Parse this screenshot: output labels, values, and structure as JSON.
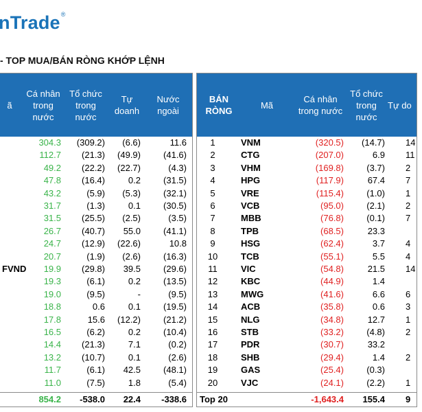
{
  "brand": {
    "name": "nTrade",
    "mark": "®"
  },
  "heading": "- TOP MUA/BÁN RÒNG KHỚP LỆNH",
  "left_table": {
    "headers": [
      "ã",
      "Cá nhân\ntrong\nnước",
      "Tổ chức\ntrong\nnước",
      "Tự\ndoanh",
      "Nước\nngoài"
    ],
    "rows": [
      {
        "code": "",
        "ind": "304.3",
        "org": "(309.2)",
        "prop": "(6.6)",
        "foreign": "11.6"
      },
      {
        "code": "",
        "ind": "112.7",
        "org": "(21.3)",
        "prop": "(49.9)",
        "foreign": "(41.6)"
      },
      {
        "code": "",
        "ind": "49.2",
        "org": "(22.2)",
        "prop": "(22.7)",
        "foreign": "(4.3)"
      },
      {
        "code": "",
        "ind": "47.8",
        "org": "(16.4)",
        "prop": "0.2",
        "foreign": "(31.5)"
      },
      {
        "code": "",
        "ind": "43.2",
        "org": "(5.9)",
        "prop": "(5.3)",
        "foreign": "(32.1)"
      },
      {
        "code": "",
        "ind": "31.7",
        "org": "(1.3)",
        "prop": "0.1",
        "foreign": "(30.5)"
      },
      {
        "code": "",
        "ind": "31.5",
        "org": "(25.5)",
        "prop": "(2.5)",
        "foreign": "(3.5)"
      },
      {
        "code": "",
        "ind": "26.7",
        "org": "(40.7)",
        "prop": "55.0",
        "foreign": "(41.1)"
      },
      {
        "code": "",
        "ind": "24.7",
        "org": "(12.9)",
        "prop": "(22.6)",
        "foreign": "10.8"
      },
      {
        "code": "",
        "ind": "20.7",
        "org": "(1.9)",
        "prop": "(2.6)",
        "foreign": "(16.3)"
      },
      {
        "code": "FVND",
        "ind": "19.9",
        "org": "(29.8)",
        "prop": "39.5",
        "foreign": "(29.6)"
      },
      {
        "code": "",
        "ind": "19.3",
        "org": "(6.1)",
        "prop": "0.2",
        "foreign": "(13.5)"
      },
      {
        "code": "",
        "ind": "19.0",
        "org": "(9.5)",
        "prop": "-",
        "foreign": "(9.5)"
      },
      {
        "code": "",
        "ind": "18.8",
        "org": "0.6",
        "prop": "0.1",
        "foreign": "(19.5)"
      },
      {
        "code": "",
        "ind": "17.8",
        "org": "15.6",
        "prop": "(12.2)",
        "foreign": "(21.2)"
      },
      {
        "code": "",
        "ind": "16.5",
        "org": "(6.2)",
        "prop": "0.2",
        "foreign": "(10.4)"
      },
      {
        "code": "",
        "ind": "14.4",
        "org": "(21.3)",
        "prop": "7.1",
        "foreign": "(0.2)"
      },
      {
        "code": "",
        "ind": "13.2",
        "org": "(10.7)",
        "prop": "0.1",
        "foreign": "(2.6)"
      },
      {
        "code": "",
        "ind": "11.7",
        "org": "(6.1)",
        "prop": "42.5",
        "foreign": "(48.1)"
      },
      {
        "code": "",
        "ind": "11.0",
        "org": "(7.5)",
        "prop": "1.8",
        "foreign": "(5.4)"
      }
    ],
    "total": {
      "ind": "854.2",
      "org": "-538.0",
      "prop": "22.4",
      "foreign": "-338.6"
    }
  },
  "right_table": {
    "headers": [
      "BÁN\nRÒNG",
      "Mã",
      "Cá nhân\ntrong nước",
      "Tổ chức\ntrong\nnước",
      "Tự do"
    ],
    "rows": [
      {
        "rank": "1",
        "code": "VNM",
        "ind": "(320.5)",
        "org": "(14.7)",
        "prop": "14"
      },
      {
        "rank": "2",
        "code": "CTG",
        "ind": "(207.0)",
        "org": "6.9",
        "prop": "11"
      },
      {
        "rank": "3",
        "code": "VHM",
        "ind": "(169.8)",
        "org": "(3.7)",
        "prop": "2"
      },
      {
        "rank": "4",
        "code": "HPG",
        "ind": "(117.9)",
        "org": "67.4",
        "prop": "7"
      },
      {
        "rank": "5",
        "code": "VRE",
        "ind": "(115.4)",
        "org": "(1.0)",
        "prop": "1"
      },
      {
        "rank": "6",
        "code": "VCB",
        "ind": "(95.0)",
        "org": "(2.1)",
        "prop": "2"
      },
      {
        "rank": "7",
        "code": "MBB",
        "ind": "(76.8)",
        "org": "(0.1)",
        "prop": "7"
      },
      {
        "rank": "8",
        "code": "TPB",
        "ind": "(68.5)",
        "org": "23.3",
        "prop": ""
      },
      {
        "rank": "9",
        "code": "HSG",
        "ind": "(62.4)",
        "org": "3.7",
        "prop": "4"
      },
      {
        "rank": "10",
        "code": "TCB",
        "ind": "(55.1)",
        "org": "5.5",
        "prop": "4"
      },
      {
        "rank": "11",
        "code": "VIC",
        "ind": "(54.8)",
        "org": "21.5",
        "prop": "14"
      },
      {
        "rank": "12",
        "code": "KBC",
        "ind": "(44.9)",
        "org": "1.4",
        "prop": ""
      },
      {
        "rank": "13",
        "code": "MWG",
        "ind": "(41.6)",
        "org": "6.6",
        "prop": "6"
      },
      {
        "rank": "14",
        "code": "ACB",
        "ind": "(35.8)",
        "org": "0.6",
        "prop": "3"
      },
      {
        "rank": "15",
        "code": "NLG",
        "ind": "(34.8)",
        "org": "12.7",
        "prop": "1"
      },
      {
        "rank": "16",
        "code": "STB",
        "ind": "(33.2)",
        "org": "(4.8)",
        "prop": "2"
      },
      {
        "rank": "17",
        "code": "PDR",
        "ind": "(30.7)",
        "org": "33.2",
        "prop": ""
      },
      {
        "rank": "18",
        "code": "SHB",
        "ind": "(29.4)",
        "org": "1.4",
        "prop": "2"
      },
      {
        "rank": "19",
        "code": "GAS",
        "ind": "(25.4)",
        "org": "(0.3)",
        "prop": ""
      },
      {
        "rank": "20",
        "code": "VJC",
        "ind": "(24.1)",
        "org": "(2.2)",
        "prop": "1"
      }
    ],
    "total": {
      "label": "Top 20",
      "ind": "-1,643.4",
      "org": "155.4",
      "prop": "9"
    }
  }
}
